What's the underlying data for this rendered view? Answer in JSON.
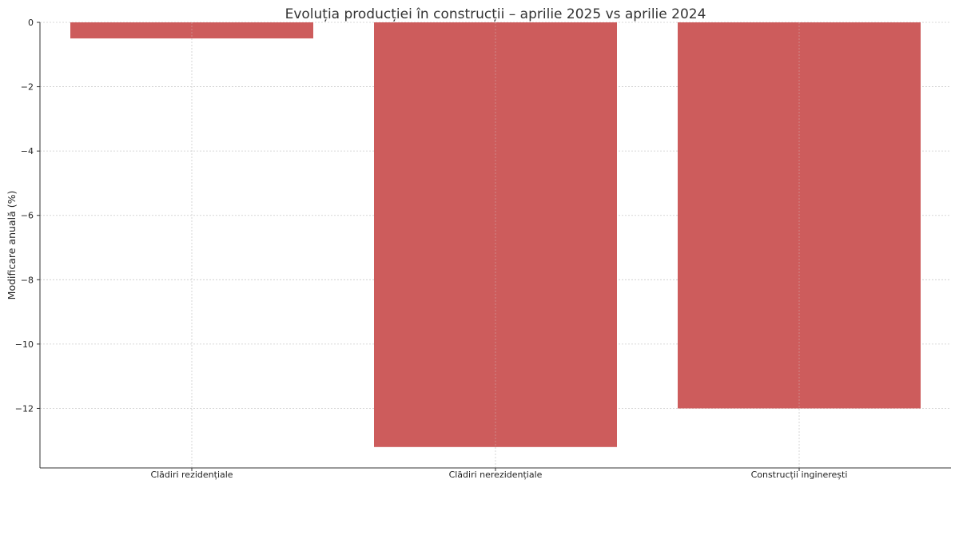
{
  "chart_data": {
    "type": "bar",
    "title": "Evoluția producției în construcții – aprilie 2025 vs aprilie 2024",
    "xlabel": "",
    "ylabel": "Modificare anuală (%)",
    "categories": [
      "Clădiri rezidențiale",
      "Clădiri nerezidențiale",
      "Construcții inginerești"
    ],
    "values": [
      -0.5,
      -13.2,
      -12.0
    ],
    "ylim": [
      -13.85,
      0
    ],
    "yticks": [
      0,
      -2,
      -4,
      -6,
      -8,
      -10,
      -12
    ],
    "ytick_labels": [
      "0",
      "−2",
      "−4",
      "−6",
      "−8",
      "−10",
      "−12"
    ],
    "grid": true,
    "bar_color": "#cd5c5c"
  }
}
